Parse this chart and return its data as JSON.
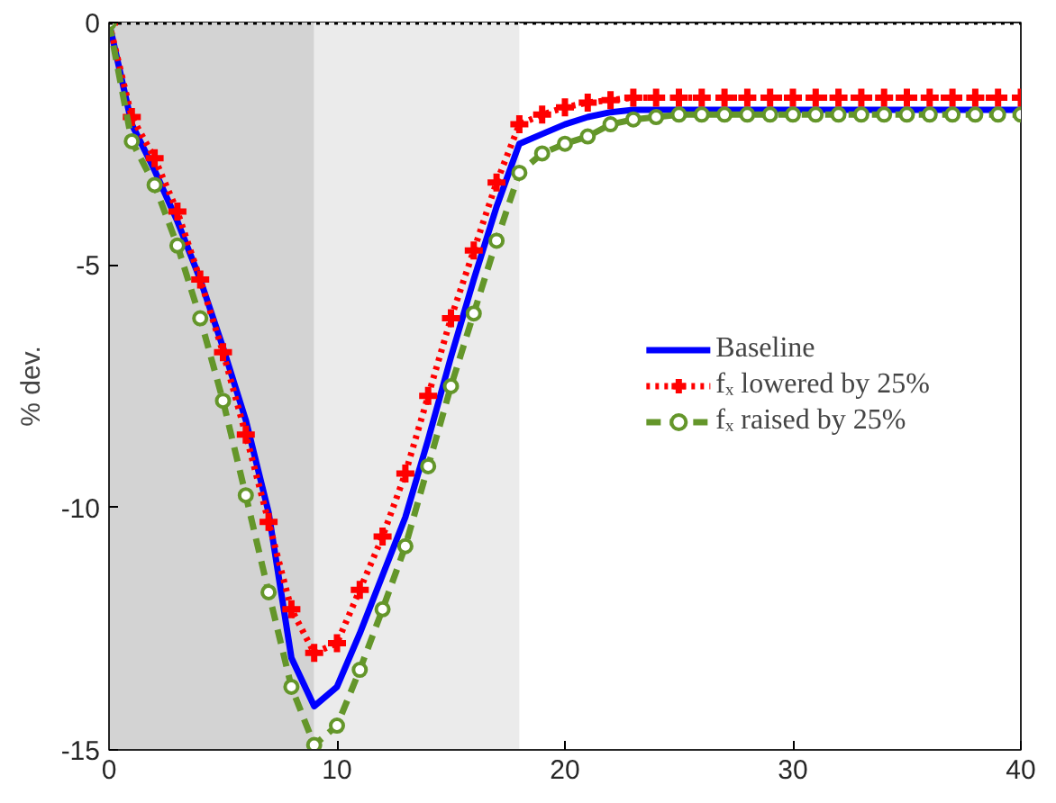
{
  "chart_data": {
    "type": "line",
    "ylabel": "% dev.",
    "x": [
      0,
      1,
      2,
      3,
      4,
      5,
      6,
      7,
      8,
      9,
      10,
      11,
      12,
      13,
      14,
      15,
      16,
      17,
      18,
      19,
      20,
      21,
      22,
      23,
      24,
      25,
      26,
      27,
      28,
      29,
      30,
      31,
      32,
      33,
      34,
      35,
      36,
      37,
      38,
      39,
      40
    ],
    "series": [
      {
        "name": "Baseline",
        "color": "#0000ff",
        "line_style": "solid",
        "marker": "none",
        "values": [
          0,
          -2.1,
          -3.05,
          -4.1,
          -5.3,
          -6.7,
          -8.2,
          -10.1,
          -13.1,
          -14.1,
          -13.7,
          -12.6,
          -11.4,
          -10.2,
          -8.6,
          -6.9,
          -5.3,
          -3.8,
          -2.5,
          -2.3,
          -2.1,
          -1.95,
          -1.85,
          -1.8,
          -1.8,
          -1.8,
          -1.8,
          -1.8,
          -1.8,
          -1.8,
          -1.8,
          -1.8,
          -1.8,
          -1.8,
          -1.8,
          -1.8,
          -1.8,
          -1.8,
          -1.8,
          -1.8,
          -1.8
        ]
      },
      {
        "name": "fₓ lowered by 25%",
        "color": "#ff0000",
        "line_style": "dotted",
        "marker": "cross",
        "values": [
          0,
          -1.95,
          -2.8,
          -3.9,
          -5.3,
          -6.8,
          -8.5,
          -10.3,
          -12.1,
          -13.0,
          -12.8,
          -11.7,
          -10.6,
          -9.3,
          -7.7,
          -6.1,
          -4.7,
          -3.3,
          -2.1,
          -1.9,
          -1.75,
          -1.65,
          -1.6,
          -1.55,
          -1.55,
          -1.55,
          -1.55,
          -1.55,
          -1.55,
          -1.55,
          -1.55,
          -1.55,
          -1.55,
          -1.55,
          -1.55,
          -1.55,
          -1.55,
          -1.55,
          -1.55,
          -1.55,
          -1.55
        ]
      },
      {
        "name": "fₓ raised by 25%",
        "color": "#64962a",
        "line_style": "dashed",
        "marker": "circle",
        "values": [
          0,
          -2.45,
          -3.35,
          -4.6,
          -6.1,
          -7.8,
          -9.75,
          -11.75,
          -13.7,
          -14.9,
          -14.5,
          -13.35,
          -12.1,
          -10.8,
          -9.15,
          -7.5,
          -6.0,
          -4.5,
          -3.1,
          -2.7,
          -2.5,
          -2.35,
          -2.1,
          -2.0,
          -1.95,
          -1.9,
          -1.9,
          -1.9,
          -1.9,
          -1.9,
          -1.9,
          -1.9,
          -1.9,
          -1.9,
          -1.9,
          -1.9,
          -1.9,
          -1.9,
          -1.9,
          -1.9,
          -1.9
        ]
      }
    ],
    "xlim": [
      0,
      40
    ],
    "xticks": [
      0,
      10,
      20,
      30,
      40
    ],
    "ylim": [
      -15,
      0
    ],
    "yticks": [
      0,
      -5,
      -10,
      -15
    ],
    "ref_lines": [
      {
        "axis": "y",
        "value": 0,
        "color": "#000000",
        "line_style": "dotted"
      }
    ],
    "bands": [
      {
        "axis": "x",
        "from": 0,
        "to": 9,
        "color": "#d3d3d3"
      },
      {
        "axis": "x",
        "from": 9,
        "to": 18,
        "color": "#ebebeb"
      }
    ],
    "grid": false,
    "legend": "right"
  }
}
